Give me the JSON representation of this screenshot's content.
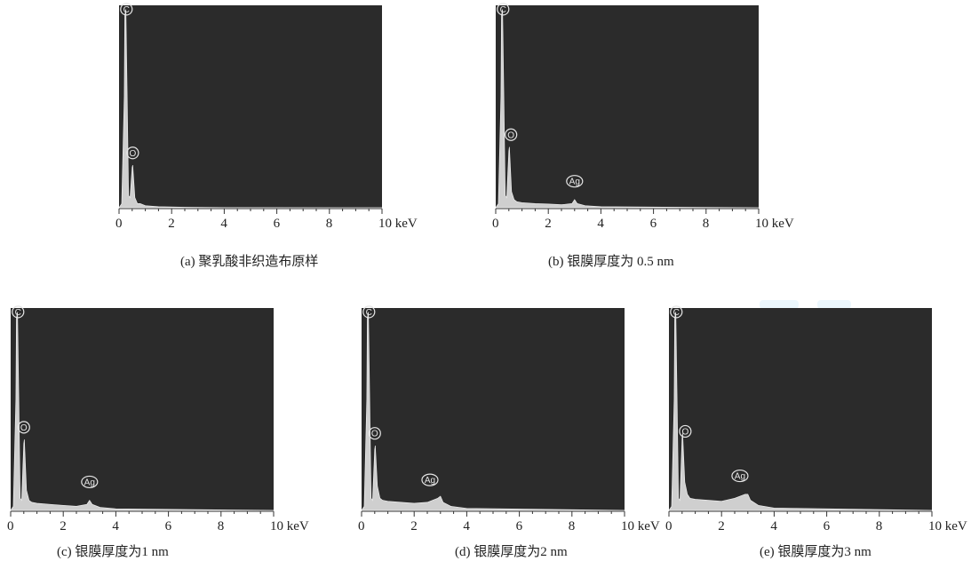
{
  "chart_data": [
    {
      "type": "area",
      "id": "a",
      "caption": "(a) 聚乳酸非织造布原样",
      "xticks": [
        "0",
        "2",
        "4",
        "6",
        "8",
        "10 keV"
      ],
      "xlim": [
        0,
        10
      ],
      "ylim": [
        0,
        1
      ],
      "series": [
        {
          "x": [
            0.0,
            0.1,
            0.2,
            0.22,
            0.26,
            0.3,
            0.36,
            0.42,
            0.5,
            0.52,
            0.6,
            0.7,
            0.8,
            1.0,
            1.5,
            2.5,
            4.0,
            10.0
          ],
          "y": [
            0.0,
            0.02,
            0.55,
            0.95,
            0.98,
            0.62,
            0.06,
            0.05,
            0.2,
            0.21,
            0.05,
            0.02,
            0.02,
            0.01,
            0.005,
            0.002,
            0.001,
            0.0
          ]
        }
      ],
      "peak_labels": [
        {
          "text": "C",
          "x": 0.28,
          "y": 0.95
        },
        {
          "text": "O",
          "x": 0.52,
          "y": 0.24
        }
      ]
    },
    {
      "type": "area",
      "id": "b",
      "caption": "(b)  银膜厚度为 0.5  nm",
      "xticks": [
        "0",
        "2",
        "4",
        "6",
        "8",
        "10 keV"
      ],
      "xlim": [
        0,
        10
      ],
      "ylim": [
        0,
        1
      ],
      "series": [
        {
          "x": [
            0.0,
            0.1,
            0.2,
            0.22,
            0.26,
            0.3,
            0.36,
            0.42,
            0.5,
            0.52,
            0.6,
            0.7,
            0.8,
            1.0,
            1.5,
            2.0,
            2.5,
            2.9,
            3.0,
            3.1,
            3.4,
            4.0,
            10.0
          ],
          "y": [
            0.0,
            0.02,
            0.55,
            0.95,
            0.98,
            0.62,
            0.06,
            0.05,
            0.28,
            0.3,
            0.08,
            0.04,
            0.03,
            0.025,
            0.02,
            0.018,
            0.015,
            0.02,
            0.04,
            0.02,
            0.01,
            0.005,
            0.0
          ]
        }
      ],
      "peak_labels": [
        {
          "text": "C",
          "x": 0.28,
          "y": 0.95
        },
        {
          "text": "O",
          "x": 0.58,
          "y": 0.33
        },
        {
          "text": "Ag",
          "x": 3.0,
          "y": 0.1
        }
      ]
    },
    {
      "type": "area",
      "id": "c",
      "caption": "(c)  银膜厚度为1 nm",
      "xticks": [
        "0",
        "2",
        "4",
        "6",
        "8",
        "10 keV"
      ],
      "xlim": [
        0,
        10
      ],
      "ylim": [
        0,
        1
      ],
      "series": [
        {
          "x": [
            0.0,
            0.1,
            0.2,
            0.22,
            0.26,
            0.3,
            0.36,
            0.42,
            0.5,
            0.52,
            0.6,
            0.7,
            0.8,
            1.0,
            1.5,
            2.0,
            2.5,
            2.9,
            3.0,
            3.1,
            3.4,
            4.0,
            10.0
          ],
          "y": [
            0.0,
            0.02,
            0.55,
            0.95,
            0.98,
            0.62,
            0.06,
            0.05,
            0.33,
            0.35,
            0.1,
            0.05,
            0.04,
            0.035,
            0.03,
            0.025,
            0.02,
            0.03,
            0.05,
            0.03,
            0.015,
            0.008,
            0.0
          ]
        }
      ],
      "peak_labels": [
        {
          "text": "C",
          "x": 0.28,
          "y": 0.95
        },
        {
          "text": "O",
          "x": 0.5,
          "y": 0.38
        },
        {
          "text": "Ag",
          "x": 3.0,
          "y": 0.11
        }
      ]
    },
    {
      "type": "area",
      "id": "d",
      "caption": "(d) 银膜厚度为2 nm",
      "xticks": [
        "0",
        "2",
        "4",
        "6",
        "8",
        "10 keV"
      ],
      "xlim": [
        0,
        10
      ],
      "ylim": [
        0,
        1
      ],
      "series": [
        {
          "x": [
            0.0,
            0.1,
            0.2,
            0.22,
            0.26,
            0.3,
            0.36,
            0.42,
            0.5,
            0.52,
            0.6,
            0.7,
            0.8,
            1.0,
            1.5,
            2.0,
            2.5,
            2.9,
            3.0,
            3.1,
            3.4,
            4.0,
            10.0
          ],
          "y": [
            0.0,
            0.02,
            0.55,
            0.95,
            0.98,
            0.62,
            0.06,
            0.05,
            0.3,
            0.32,
            0.12,
            0.06,
            0.05,
            0.045,
            0.04,
            0.035,
            0.04,
            0.06,
            0.07,
            0.04,
            0.02,
            0.01,
            0.0
          ]
        }
      ],
      "peak_labels": [
        {
          "text": "C",
          "x": 0.28,
          "y": 0.95
        },
        {
          "text": "O",
          "x": 0.5,
          "y": 0.35
        },
        {
          "text": "Ag",
          "x": 2.6,
          "y": 0.12
        }
      ]
    },
    {
      "type": "area",
      "id": "e",
      "caption": "(e) 银膜厚度为3 nm",
      "xticks": [
        "0",
        "2",
        "4",
        "6",
        "8",
        "10 keV"
      ],
      "xlim": [
        0,
        10
      ],
      "ylim": [
        0,
        1
      ],
      "series": [
        {
          "x": [
            0.0,
            0.1,
            0.2,
            0.22,
            0.26,
            0.3,
            0.36,
            0.42,
            0.5,
            0.52,
            0.6,
            0.7,
            0.8,
            1.0,
            1.5,
            2.0,
            2.5,
            2.9,
            3.0,
            3.1,
            3.4,
            4.0,
            10.0
          ],
          "y": [
            0.0,
            0.02,
            0.55,
            0.95,
            0.98,
            0.62,
            0.06,
            0.05,
            0.36,
            0.38,
            0.14,
            0.08,
            0.06,
            0.055,
            0.05,
            0.045,
            0.06,
            0.08,
            0.08,
            0.05,
            0.025,
            0.012,
            0.0
          ]
        }
      ],
      "peak_labels": [
        {
          "text": "C",
          "x": 0.28,
          "y": 0.95
        },
        {
          "text": "O",
          "x": 0.62,
          "y": 0.36
        },
        {
          "text": "Ag",
          "x": 2.7,
          "y": 0.14
        }
      ]
    }
  ]
}
